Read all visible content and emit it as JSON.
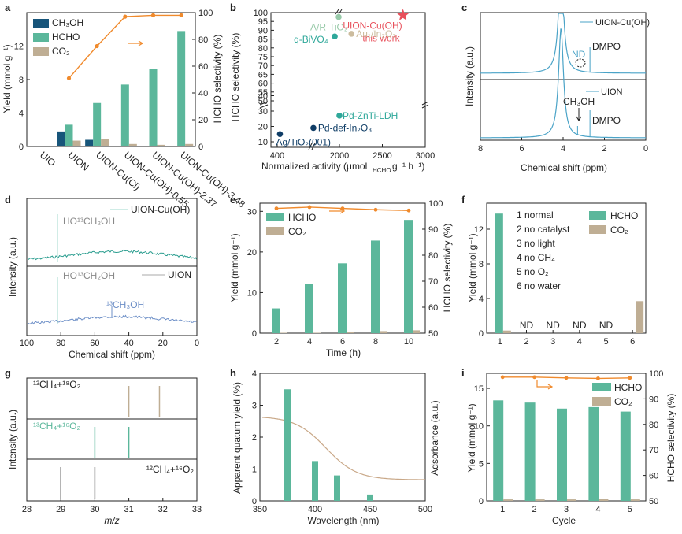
{
  "colors": {
    "dark_blue": "#17557a",
    "teal": "#5bb79b",
    "tan": "#bfae94",
    "orange": "#f08a2c",
    "red": "#e8505b",
    "light_green": "#97c9a8",
    "light_tan": "#ccbc9e",
    "teal_dark": "#2fa89a",
    "navy": "#0f3d66",
    "sky": "#4aa3c7",
    "nmr_teal": "#2a9d8f",
    "nmr_blue": "#6d8fc7",
    "gray": "#777777",
    "uv_line": "#c9a888"
  },
  "chart_data": [
    {
      "panel": "a",
      "type": "bar",
      "categories": [
        "UIO",
        "UION",
        "UION-Cu(Cl)",
        "UION-Cu(OH)-0.55",
        "UION-Cu(OH)-2.37",
        "UION-Cu(OH)-3.48"
      ],
      "series": [
        {
          "name": "CH3OH",
          "values": [
            0,
            1.8,
            0.8,
            0,
            0,
            0
          ]
        },
        {
          "name": "HCHO",
          "values": [
            0,
            2.6,
            5.2,
            7.4,
            9.3,
            13.8
          ]
        },
        {
          "name": "CO2",
          "values": [
            0,
            0.7,
            0.9,
            0.3,
            0.2,
            0.3
          ]
        }
      ],
      "line": {
        "name": "HCHO selectivity",
        "values": [
          null,
          51,
          75,
          97,
          98,
          98
        ]
      },
      "legend": [
        "CH₃OH",
        "HCHO",
        "CO₂"
      ],
      "ylabel": "Yield (mmol g⁻¹)",
      "y2label": "HCHO selectivity (%)",
      "ylim": [
        0,
        16
      ],
      "yticks": [
        "0",
        "4",
        "8",
        "12"
      ],
      "y2lim": [
        0,
        100
      ],
      "y2ticks": [
        "0",
        "20",
        "40",
        "60",
        "80",
        "100"
      ]
    },
    {
      "panel": "b",
      "type": "scatter",
      "points": [
        {
          "label": "A/R-TiO₂",
          "x": 1980,
          "y": 97.5,
          "color": "light_green"
        },
        {
          "label": "UION-Cu(OH)",
          "label2": "this work",
          "x": 2740,
          "y": 98.5,
          "color": "red",
          "marker": "star"
        },
        {
          "label": "Au₁/In₂O₃",
          "x": 2140,
          "y": 88,
          "color": "light_tan"
        },
        {
          "label": "q-BiVO₄",
          "x": 1880,
          "y": 86.5,
          "color": "teal_dark"
        },
        {
          "label": "Pd-ZnTi-LDH",
          "x": 2000,
          "y": 27,
          "color": "teal_dark"
        },
        {
          "label": "Pd-def-In₂O₃",
          "x": 1330,
          "y": 19,
          "color": "navy"
        },
        {
          "label": "Ag/TiO₂(001)",
          "x": 470,
          "y": 15,
          "color": "navy"
        }
      ],
      "xlabel": "Normalized activity (μmol",
      "xlabel_sub": "HCHO",
      "xlabel_end": " g⁻¹ h⁻¹)",
      "ylabel": "HCHO selectivity (%)",
      "xlim": [
        400,
        3000
      ],
      "xticks": [
        "400",
        "2000",
        "2500",
        "3000"
      ],
      "yticks": [
        "10",
        "20",
        "30",
        "40",
        "50",
        "55",
        "60",
        "65",
        "70",
        "75",
        "80",
        "85",
        "90",
        "95",
        "100"
      ]
    },
    {
      "panel": "c",
      "type": "line",
      "series": [
        {
          "name": "UION-Cu(OH)"
        },
        {
          "name": "UION"
        }
      ],
      "annotations": [
        "ND",
        "DMPO",
        "CH₃OH",
        "DMPO"
      ],
      "xlabel": "Chemical shift (ppm)",
      "ylabel": "Intensity (a.u.)",
      "xlim": [
        8,
        0
      ],
      "xticks": [
        "8",
        "6",
        "4",
        "2",
        "0"
      ]
    },
    {
      "panel": "d",
      "type": "line",
      "series": [
        {
          "name": "UION-Cu(OH)"
        },
        {
          "name": "UION"
        }
      ],
      "annotations": [
        "HO¹³CH₂OH",
        "HO¹³CH₂OH",
        "¹³CH₃OH"
      ],
      "xlabel": "Chemical shift (ppm)",
      "ylabel": "Intensity (a.u.)",
      "xlim": [
        100,
        0
      ],
      "xticks": [
        "100",
        "80",
        "60",
        "40",
        "20",
        "0"
      ]
    },
    {
      "panel": "e",
      "type": "bar",
      "x": [
        2,
        4,
        6,
        8,
        10
      ],
      "series": [
        {
          "name": "HCHO",
          "values": [
            6.1,
            12.2,
            17.2,
            22.8,
            27.9
          ]
        },
        {
          "name": "CO2",
          "values": [
            0.1,
            0.1,
            0.3,
            0.5,
            0.7
          ]
        }
      ],
      "line": {
        "name": "HCHO selectivity",
        "values": [
          98,
          98.5,
          98,
          97.5,
          97.2
        ]
      },
      "legend": [
        "HCHO",
        "CO₂"
      ],
      "xlabel": "Time (h)",
      "ylabel": "Yield (mmol g⁻¹)",
      "y2label": "HCHO selectivity (%)",
      "ylim": [
        0,
        32
      ],
      "yticks": [
        "0",
        "10",
        "20",
        "30"
      ],
      "y2lim": [
        50,
        100
      ],
      "y2ticks": [
        "50",
        "60",
        "70",
        "80",
        "90",
        "100"
      ]
    },
    {
      "panel": "f",
      "type": "bar",
      "categories": [
        "1",
        "2",
        "3",
        "4",
        "5",
        "6"
      ],
      "series": [
        {
          "name": "HCHO",
          "values": [
            13.8,
            0,
            0,
            0,
            0,
            0
          ]
        },
        {
          "name": "CO2",
          "values": [
            0.3,
            0,
            0,
            0,
            0,
            3.7
          ]
        }
      ],
      "na_labels": [
        "",
        "ND",
        "ND",
        "ND",
        "ND",
        ""
      ],
      "conditions": [
        "1   normal",
        "2   no catalyst",
        "3   no light",
        "4   no CH₄",
        "5   no O₂",
        "6   no water"
      ],
      "legend": [
        "HCHO",
        "CO₂"
      ],
      "ylabel": "Yield (mmol g⁻¹)",
      "ylim": [
        0,
        15
      ],
      "yticks": [
        "0",
        "4",
        "8",
        "12"
      ]
    },
    {
      "panel": "g",
      "type": "bar",
      "series": [
        {
          "name": "¹²CH₄+¹⁸O₂",
          "x": [
            31,
            31.9
          ]
        },
        {
          "name": "¹³CH₄+¹⁶O₂",
          "x": [
            30,
            31
          ]
        },
        {
          "name": "¹²CH₄+¹⁶O₂",
          "x": [
            29,
            30
          ]
        }
      ],
      "xlabel": "m/z",
      "ylabel": "Intensity (a.u.)",
      "xlim": [
        28,
        33
      ],
      "xticks": [
        "28",
        "29",
        "30",
        "31",
        "32",
        "33"
      ]
    },
    {
      "panel": "h",
      "type": "bar",
      "x": [
        375,
        400,
        420,
        450
      ],
      "values": [
        3.5,
        1.25,
        0.8,
        0.2
      ],
      "line_name": "Absorbance",
      "xlabel": "Wavelength (nm)",
      "ylabel": "Apparent quatum yield (%)",
      "y2label": "Adsorbance (a.u.)",
      "xlim": [
        350,
        500
      ],
      "xticks": [
        "350",
        "400",
        "450",
        "500"
      ],
      "ylim": [
        0,
        4
      ],
      "yticks": [
        "0",
        "1",
        "2",
        "3",
        "4"
      ]
    },
    {
      "panel": "i",
      "type": "bar",
      "x": [
        1,
        2,
        3,
        4,
        5
      ],
      "series": [
        {
          "name": "HCHO",
          "values": [
            13.4,
            13.1,
            12.3,
            12.5,
            11.9
          ]
        },
        {
          "name": "CO2",
          "values": [
            0.2,
            0.2,
            0.2,
            0.25,
            0.2
          ]
        }
      ],
      "line": {
        "name": "HCHO selectivity",
        "values": [
          98.5,
          98.5,
          98.2,
          98,
          98.2
        ]
      },
      "legend": [
        "HCHO",
        "CO₂"
      ],
      "xlabel": "Cycle",
      "ylabel": "Yield (mmol g⁻¹)",
      "y2label": "HCHO selectivity (%)",
      "ylim": [
        0,
        17
      ],
      "yticks": [
        "0",
        "5",
        "10",
        "15"
      ],
      "y2lim": [
        50,
        100
      ],
      "y2ticks": [
        "50",
        "60",
        "70",
        "80",
        "90",
        "100"
      ]
    }
  ]
}
